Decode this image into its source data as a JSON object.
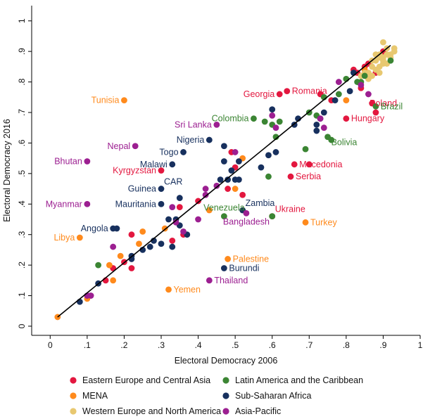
{
  "chart_data": {
    "type": "scatter",
    "xlabel": "Electoral Democracy 2006",
    "ylabel": "Electoral Democracy 2016",
    "xlim": [
      -0.05,
      1.0
    ],
    "ylim": [
      -0.03,
      1.05
    ],
    "xticks": [
      "0",
      ".1",
      ".2",
      ".3",
      ".4",
      ".5",
      ".6",
      ".7",
      ".8",
      ".9",
      "1"
    ],
    "yticks": [
      "0",
      ".1",
      ".2",
      ".3",
      ".4",
      ".5",
      ".6",
      ".7",
      ".8",
      ".9",
      "1"
    ],
    "grid": false,
    "legend_position": "bottom",
    "fit_line": {
      "x": [
        0.02,
        0.92
      ],
      "y": [
        0.03,
        0.92
      ],
      "color": "#000000"
    },
    "series": [
      {
        "name": "Eastern Europe and Central Asia",
        "color": "#e3173f",
        "points": [
          [
            0.62,
            0.76
          ],
          [
            0.64,
            0.77
          ],
          [
            0.83,
            0.83
          ],
          [
            0.85,
            0.85
          ],
          [
            0.86,
            0.86
          ],
          [
            0.88,
            0.83
          ],
          [
            0.87,
            0.73
          ],
          [
            0.88,
            0.7
          ],
          [
            0.8,
            0.68
          ],
          [
            0.76,
            0.74
          ],
          [
            0.73,
            0.76
          ],
          [
            0.66,
            0.53
          ],
          [
            0.65,
            0.49
          ],
          [
            0.6,
            0.36
          ],
          [
            0.49,
            0.57
          ],
          [
            0.5,
            0.52
          ],
          [
            0.48,
            0.45
          ],
          [
            0.4,
            0.41
          ],
          [
            0.35,
            0.39
          ],
          [
            0.36,
            0.3
          ],
          [
            0.33,
            0.28
          ],
          [
            0.22,
            0.3
          ],
          [
            0.2,
            0.21
          ],
          [
            0.22,
            0.19
          ],
          [
            0.17,
            0.19
          ],
          [
            0.15,
            0.15
          ],
          [
            0.3,
            0.51
          ],
          [
            0.84,
            0.78
          ],
          [
            0.9,
            0.9
          ],
          [
            0.82,
            0.84
          ],
          [
            0.52,
            0.43
          ],
          [
            0.7,
            0.53
          ]
        ]
      },
      {
        "name": "MENA",
        "color": "#ff8a1c",
        "points": [
          [
            0.2,
            0.74
          ],
          [
            0.08,
            0.29
          ],
          [
            0.02,
            0.03
          ],
          [
            0.17,
            0.15
          ],
          [
            0.19,
            0.23
          ],
          [
            0.24,
            0.27
          ],
          [
            0.25,
            0.31
          ],
          [
            0.31,
            0.32
          ],
          [
            0.32,
            0.12
          ],
          [
            0.43,
            0.38
          ],
          [
            0.48,
            0.22
          ],
          [
            0.5,
            0.45
          ],
          [
            0.52,
            0.55
          ],
          [
            0.69,
            0.34
          ],
          [
            0.8,
            0.74
          ],
          [
            0.85,
            0.84
          ],
          [
            0.1,
            0.09
          ],
          [
            0.16,
            0.2
          ]
        ]
      },
      {
        "name": "Western Europe and North America",
        "color": "#e8c870",
        "points": [
          [
            0.9,
            0.93
          ],
          [
            0.91,
            0.91
          ],
          [
            0.92,
            0.89
          ],
          [
            0.93,
            0.9
          ],
          [
            0.89,
            0.88
          ],
          [
            0.88,
            0.87
          ],
          [
            0.87,
            0.85
          ],
          [
            0.86,
            0.83
          ],
          [
            0.87,
            0.82
          ],
          [
            0.88,
            0.84
          ],
          [
            0.89,
            0.85
          ],
          [
            0.9,
            0.86
          ],
          [
            0.91,
            0.86
          ],
          [
            0.92,
            0.88
          ],
          [
            0.9,
            0.87
          ],
          [
            0.89,
            0.89
          ],
          [
            0.86,
            0.81
          ],
          [
            0.84,
            0.82
          ],
          [
            0.85,
            0.83
          ],
          [
            0.87,
            0.87
          ],
          [
            0.88,
            0.89
          ],
          [
            0.91,
            0.89
          ],
          [
            0.93,
            0.91
          ],
          [
            0.89,
            0.83
          ],
          [
            0.9,
            0.88
          ]
        ]
      },
      {
        "name": "Latin America and the Caribbean",
        "color": "#3b8533",
        "points": [
          [
            0.55,
            0.68
          ],
          [
            0.58,
            0.67
          ],
          [
            0.61,
            0.62
          ],
          [
            0.6,
            0.66
          ],
          [
            0.69,
            0.58
          ],
          [
            0.75,
            0.62
          ],
          [
            0.76,
            0.61
          ],
          [
            0.88,
            0.72
          ],
          [
            0.84,
            0.8
          ],
          [
            0.85,
            0.82
          ],
          [
            0.8,
            0.81
          ],
          [
            0.78,
            0.76
          ],
          [
            0.7,
            0.7
          ],
          [
            0.6,
            0.36
          ],
          [
            0.47,
            0.36
          ],
          [
            0.59,
            0.49
          ],
          [
            0.13,
            0.2
          ],
          [
            0.74,
            0.75
          ],
          [
            0.92,
            0.87
          ],
          [
            0.83,
            0.8
          ],
          [
            0.62,
            0.67
          ],
          [
            0.72,
            0.69
          ]
        ]
      },
      {
        "name": "Sub-Saharan Africa",
        "color": "#17305e",
        "points": [
          [
            0.43,
            0.61
          ],
          [
            0.36,
            0.57
          ],
          [
            0.33,
            0.53
          ],
          [
            0.3,
            0.45
          ],
          [
            0.3,
            0.4
          ],
          [
            0.35,
            0.42
          ],
          [
            0.32,
            0.35
          ],
          [
            0.35,
            0.33
          ],
          [
            0.37,
            0.3
          ],
          [
            0.33,
            0.26
          ],
          [
            0.3,
            0.27
          ],
          [
            0.27,
            0.26
          ],
          [
            0.25,
            0.25
          ],
          [
            0.22,
            0.23
          ],
          [
            0.22,
            0.22
          ],
          [
            0.17,
            0.32
          ],
          [
            0.18,
            0.32
          ],
          [
            0.13,
            0.14
          ],
          [
            0.08,
            0.08
          ],
          [
            0.47,
            0.19
          ],
          [
            0.52,
            0.38
          ],
          [
            0.46,
            0.48
          ],
          [
            0.48,
            0.48
          ],
          [
            0.5,
            0.48
          ],
          [
            0.47,
            0.59
          ],
          [
            0.47,
            0.54
          ],
          [
            0.49,
            0.51
          ],
          [
            0.51,
            0.54
          ],
          [
            0.51,
            0.48
          ],
          [
            0.59,
            0.56
          ],
          [
            0.61,
            0.57
          ],
          [
            0.66,
            0.66
          ],
          [
            0.67,
            0.68
          ],
          [
            0.72,
            0.66
          ],
          [
            0.73,
            0.68
          ],
          [
            0.74,
            0.7
          ],
          [
            0.77,
            0.74
          ],
          [
            0.81,
            0.77
          ],
          [
            0.82,
            0.83
          ],
          [
            0.6,
            0.71
          ],
          [
            0.72,
            0.64
          ],
          [
            0.57,
            0.52
          ],
          [
            0.28,
            0.28
          ],
          [
            0.34,
            0.35
          ]
        ]
      },
      {
        "name": "Asia-Pacific",
        "color": "#9c1f91",
        "points": [
          [
            0.1,
            0.54
          ],
          [
            0.1,
            0.4
          ],
          [
            0.23,
            0.59
          ],
          [
            0.45,
            0.66
          ],
          [
            0.43,
            0.15
          ],
          [
            0.53,
            0.37
          ],
          [
            0.6,
            0.69
          ],
          [
            0.61,
            0.65
          ],
          [
            0.73,
            0.68
          ],
          [
            0.74,
            0.65
          ],
          [
            0.84,
            0.79
          ],
          [
            0.86,
            0.76
          ],
          [
            0.78,
            0.8
          ],
          [
            0.5,
            0.57
          ],
          [
            0.42,
            0.43
          ],
          [
            0.45,
            0.46
          ],
          [
            0.4,
            0.35
          ],
          [
            0.34,
            0.34
          ],
          [
            0.36,
            0.31
          ],
          [
            0.33,
            0.39
          ],
          [
            0.17,
            0.26
          ],
          [
            0.1,
            0.1
          ],
          [
            0.11,
            0.1
          ],
          [
            0.42,
            0.45
          ]
        ]
      }
    ],
    "labels": [
      {
        "text": "Romania",
        "x": 0.64,
        "y": 0.77,
        "side": "right",
        "color": "#e3173f"
      },
      {
        "text": "Georgia",
        "x": 0.62,
        "y": 0.76,
        "side": "left",
        "color": "#e3173f"
      },
      {
        "text": "Poland",
        "x": 0.85,
        "y": 0.73,
        "side": "right",
        "color": "#e3173f"
      },
      {
        "text": "Hungary",
        "x": 0.8,
        "y": 0.68,
        "side": "right",
        "color": "#e3173f"
      },
      {
        "text": "Macedonia",
        "x": 0.66,
        "y": 0.53,
        "side": "right",
        "color": "#e3173f"
      },
      {
        "text": "Serbia",
        "x": 0.65,
        "y": 0.49,
        "side": "right",
        "color": "#e3173f"
      },
      {
        "text": "Ukraine",
        "x": 0.6,
        "y": 0.36,
        "side": "right-up",
        "color": "#e3173f"
      },
      {
        "text": "Kyrgyzstan",
        "x": 0.3,
        "y": 0.51,
        "side": "left",
        "color": "#e3173f"
      },
      {
        "text": "Tunisia",
        "x": 0.2,
        "y": 0.74,
        "side": "left",
        "color": "#ff8a1c"
      },
      {
        "text": "Libya",
        "x": 0.08,
        "y": 0.29,
        "side": "left",
        "color": "#ff8a1c"
      },
      {
        "text": "Palestine",
        "x": 0.48,
        "y": 0.22,
        "side": "right",
        "color": "#ff8a1c"
      },
      {
        "text": "Yemen",
        "x": 0.32,
        "y": 0.12,
        "side": "right",
        "color": "#ff8a1c"
      },
      {
        "text": "Turkey",
        "x": 0.69,
        "y": 0.34,
        "side": "right",
        "color": "#ff8a1c"
      },
      {
        "text": "Colombia",
        "x": 0.55,
        "y": 0.68,
        "side": "left",
        "color": "#3b8533"
      },
      {
        "text": "Brazil",
        "x": 0.88,
        "y": 0.72,
        "side": "right",
        "color": "#3b8533"
      },
      {
        "text": "Bolivia",
        "x": 0.75,
        "y": 0.62,
        "side": "right-down",
        "color": "#3b8533"
      },
      {
        "text": "Venezuela",
        "x": 0.47,
        "y": 0.36,
        "side": "above",
        "color": "#3b8533"
      },
      {
        "text": "Nigeria",
        "x": 0.43,
        "y": 0.61,
        "side": "left",
        "color": "#17305e"
      },
      {
        "text": "Togo",
        "x": 0.36,
        "y": 0.57,
        "side": "left",
        "color": "#17305e"
      },
      {
        "text": "Malawi",
        "x": 0.33,
        "y": 0.53,
        "side": "left",
        "color": "#17305e"
      },
      {
        "text": "CAR",
        "x": 0.3,
        "y": 0.45,
        "side": "right-up",
        "color": "#17305e"
      },
      {
        "text": "Guinea",
        "x": 0.3,
        "y": 0.45,
        "side": "left",
        "color": "#17305e"
      },
      {
        "text": "Mauritania",
        "x": 0.3,
        "y": 0.4,
        "side": "left",
        "color": "#17305e"
      },
      {
        "text": "Angola",
        "x": 0.17,
        "y": 0.32,
        "side": "left",
        "color": "#17305e"
      },
      {
        "text": "Zambia",
        "x": 0.52,
        "y": 0.38,
        "side": "right-up",
        "color": "#17305e"
      },
      {
        "text": "Burundi",
        "x": 0.47,
        "y": 0.19,
        "side": "right",
        "color": "#17305e"
      },
      {
        "text": "Sri Lanka",
        "x": 0.45,
        "y": 0.66,
        "side": "left",
        "color": "#9c1f91"
      },
      {
        "text": "Nepal",
        "x": 0.23,
        "y": 0.59,
        "side": "left",
        "color": "#9c1f91"
      },
      {
        "text": "Bhutan",
        "x": 0.1,
        "y": 0.54,
        "side": "left",
        "color": "#9c1f91"
      },
      {
        "text": "Myanmar",
        "x": 0.1,
        "y": 0.4,
        "side": "left",
        "color": "#9c1f91"
      },
      {
        "text": "Bangladesh",
        "x": 0.53,
        "y": 0.37,
        "side": "below",
        "color": "#9c1f91"
      },
      {
        "text": "Thailand",
        "x": 0.43,
        "y": 0.15,
        "side": "right",
        "color": "#9c1f91"
      }
    ]
  }
}
